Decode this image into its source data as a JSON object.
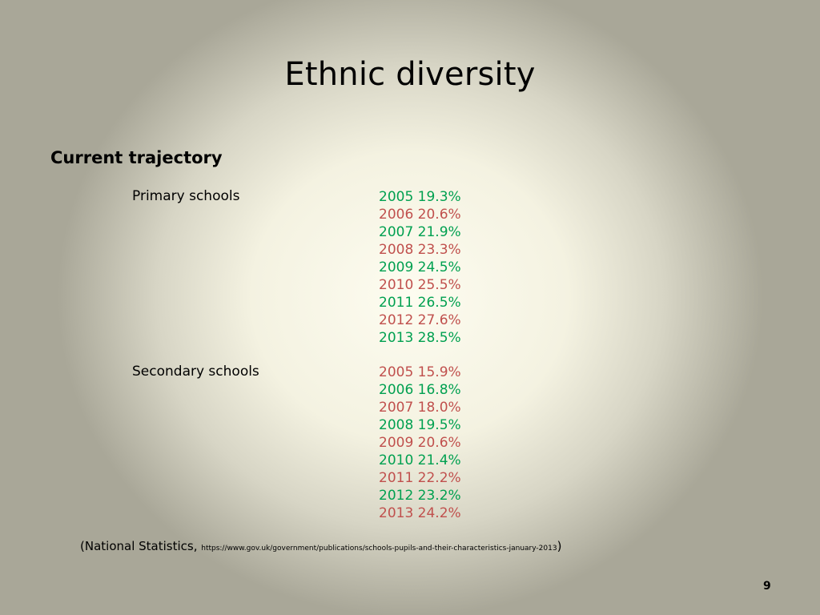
{
  "slide": {
    "title": "Ethnic diversity",
    "subtitle": "Current trajectory",
    "primary": {
      "label": "Primary schools",
      "rows": [
        {
          "text": "2005 19.3%",
          "color": "#00a050"
        },
        {
          "text": "2006 20.6%",
          "color": "#c0504d"
        },
        {
          "text": "2007 21.9%",
          "color": "#00a050"
        },
        {
          "text": "2008 23.3%",
          "color": "#c0504d"
        },
        {
          "text": "2009 24.5%",
          "color": "#00a050"
        },
        {
          "text": "2010 25.5%",
          "color": "#c0504d"
        },
        {
          "text": "2011 26.5%",
          "color": "#00a050"
        },
        {
          "text": "2012 27.6%",
          "color": "#c0504d"
        },
        {
          "text": "2013 28.5%",
          "color": "#00a050"
        }
      ]
    },
    "secondary": {
      "label": "Secondary schools",
      "rows": [
        {
          "text": "2005 15.9%",
          "color": "#c0504d"
        },
        {
          "text": "2006 16.8%",
          "color": "#00a050"
        },
        {
          "text": "2007 18.0%",
          "color": "#c0504d"
        },
        {
          "text": "2008 19.5%",
          "color": "#00a050"
        },
        {
          "text": "2009 20.6%",
          "color": "#c0504d"
        },
        {
          "text": "2010 21.4%",
          "color": "#00a050"
        },
        {
          "text": "2011 22.2%",
          "color": "#c0504d"
        },
        {
          "text": "2012 23.2%",
          "color": "#00a050"
        },
        {
          "text": "2013 24.2%",
          "color": "#c0504d"
        }
      ]
    },
    "source": {
      "prefix": "(National Statistics, ",
      "url": "https://www.gov.uk/government/publications/schools-pupils-and-their-characteristics-january-2013",
      "suffix": ")"
    },
    "page_number": "9"
  }
}
